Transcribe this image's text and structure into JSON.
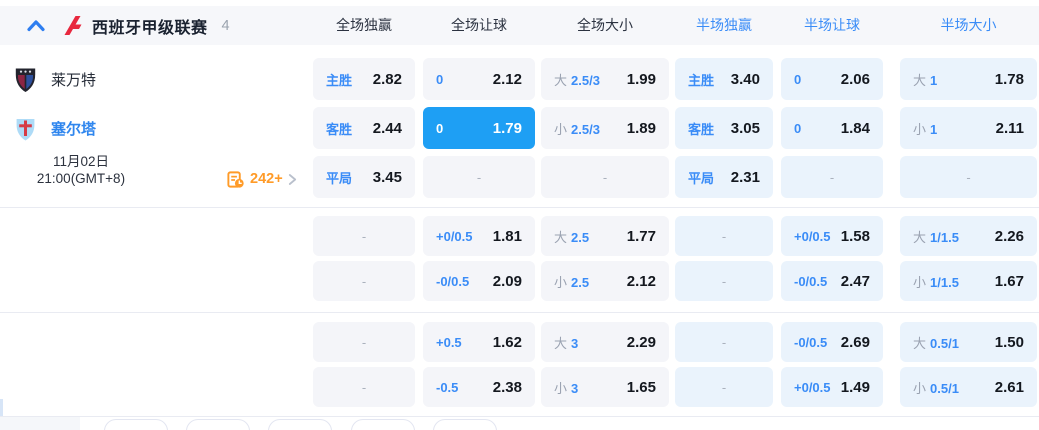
{
  "league_bar": {
    "name": "西班牙甲级联赛",
    "count": "4"
  },
  "columns": [
    {
      "label": "全场独赢",
      "period": "full"
    },
    {
      "label": "全场让球",
      "period": "full"
    },
    {
      "label": "全场大小",
      "period": "full"
    },
    {
      "label": "半场独赢",
      "period": "half"
    },
    {
      "label": "半场让球",
      "period": "half"
    },
    {
      "label": "半场大小",
      "period": "half"
    }
  ],
  "match": {
    "home_team": "莱万特",
    "away_team": "塞尔塔",
    "date": "11月02日",
    "time": "21:00(GMT+8)",
    "more_markets": "242+"
  },
  "odds_rows": [
    {
      "cells": [
        {
          "type": "win",
          "label": "主胜",
          "value": "2.82"
        },
        {
          "type": "hcp",
          "label": "0",
          "value": "2.12"
        },
        {
          "type": "ou",
          "prefix": "大",
          "line": "2.5/3",
          "value": "1.99"
        },
        {
          "type": "win",
          "label": "主胜",
          "value": "3.40"
        },
        {
          "type": "hcp",
          "label": "0",
          "value": "2.06"
        },
        {
          "type": "ou",
          "prefix": "大",
          "line": "1",
          "value": "1.78"
        }
      ]
    },
    {
      "cells": [
        {
          "type": "win",
          "label": "客胜",
          "value": "2.44"
        },
        {
          "type": "hcp",
          "label": "0",
          "value": "1.79",
          "highlight": true
        },
        {
          "type": "ou",
          "prefix": "小",
          "line": "2.5/3",
          "value": "1.89"
        },
        {
          "type": "win",
          "label": "客胜",
          "value": "3.05"
        },
        {
          "type": "hcp",
          "label": "0",
          "value": "1.84"
        },
        {
          "type": "ou",
          "prefix": "小",
          "line": "1",
          "value": "2.11"
        }
      ]
    },
    {
      "cells": [
        {
          "type": "win",
          "label": "平局",
          "value": "3.45"
        },
        {
          "type": "dash"
        },
        {
          "type": "dash"
        },
        {
          "type": "win",
          "label": "平局",
          "value": "2.31"
        },
        {
          "type": "dash"
        },
        {
          "type": "dash"
        }
      ]
    },
    {
      "cells": [
        {
          "type": "dash"
        },
        {
          "type": "hcp",
          "label": "+0/0.5",
          "value": "1.81"
        },
        {
          "type": "ou",
          "prefix": "大",
          "line": "2.5",
          "value": "1.77"
        },
        {
          "type": "dash"
        },
        {
          "type": "hcp",
          "label": "+0/0.5",
          "value": "1.58"
        },
        {
          "type": "ou",
          "prefix": "大",
          "line": "1/1.5",
          "value": "2.26"
        }
      ]
    },
    {
      "cells": [
        {
          "type": "dash"
        },
        {
          "type": "hcp",
          "label": "-0/0.5",
          "value": "2.09"
        },
        {
          "type": "ou",
          "prefix": "小",
          "line": "2.5",
          "value": "2.12"
        },
        {
          "type": "dash"
        },
        {
          "type": "hcp",
          "label": "-0/0.5",
          "value": "2.47"
        },
        {
          "type": "ou",
          "prefix": "小",
          "line": "1/1.5",
          "value": "1.67"
        }
      ]
    },
    {
      "cells": [
        {
          "type": "dash"
        },
        {
          "type": "hcp",
          "label": "+0.5",
          "value": "1.62"
        },
        {
          "type": "ou",
          "prefix": "大",
          "line": "3",
          "value": "2.29"
        },
        {
          "type": "dash"
        },
        {
          "type": "hcp",
          "label": "-0/0.5",
          "value": "2.69"
        },
        {
          "type": "ou",
          "prefix": "大",
          "line": "0.5/1",
          "value": "1.50"
        }
      ]
    },
    {
      "cells": [
        {
          "type": "dash"
        },
        {
          "type": "hcp",
          "label": "-0.5",
          "value": "2.38"
        },
        {
          "type": "ou",
          "prefix": "小",
          "line": "3",
          "value": "1.65"
        },
        {
          "type": "dash"
        },
        {
          "type": "hcp",
          "label": "+0/0.5",
          "value": "1.49"
        },
        {
          "type": "ou",
          "prefix": "小",
          "line": "0.5/1",
          "value": "2.61"
        }
      ]
    }
  ],
  "colors": {
    "accent_blue": "#3a8cf7",
    "highlight_blue": "#1e9ff4",
    "value_dark": "#14181f",
    "muted_gray": "#9aa2b1",
    "orange": "#ff9b28",
    "laliga_red": "#e8283e",
    "celta_blue": "#2f86ee",
    "levante_maroon": "#8c2543",
    "levante_navy": "#2d509e"
  }
}
